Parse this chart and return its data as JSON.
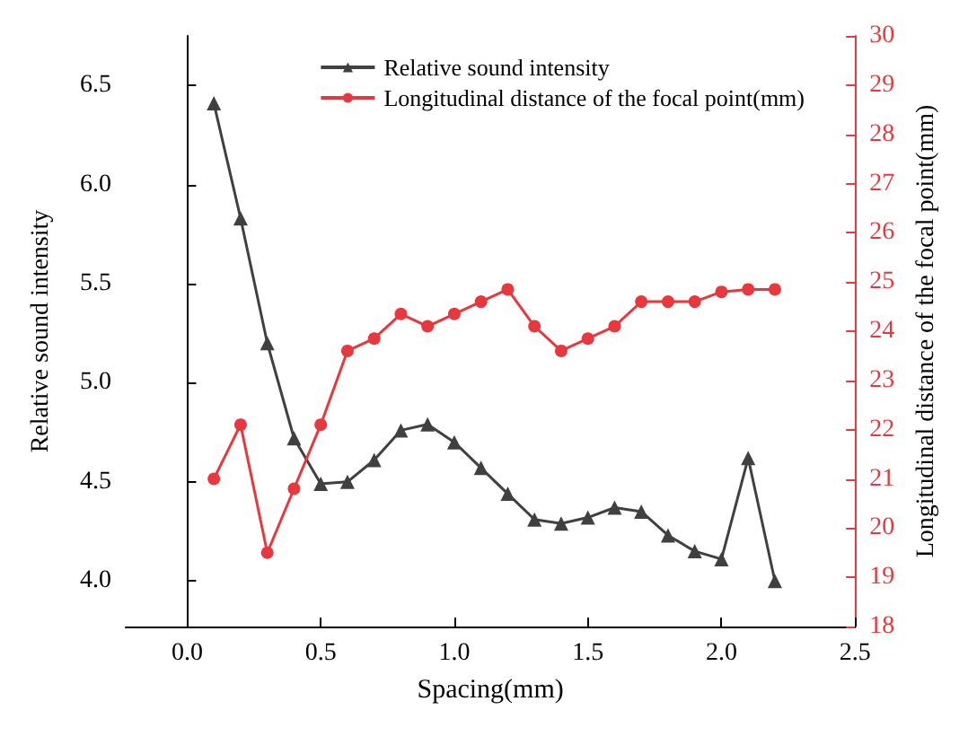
{
  "chart_data": {
    "type": "line",
    "xlabel": "Spacing(mm)",
    "ylabel": "Relative sound intensity",
    "y2label": "Longitudinal distance of the focal point(mm)",
    "x": [
      0.1,
      0.2,
      0.3,
      0.4,
      0.5,
      0.6,
      0.7,
      0.8,
      0.9,
      1.0,
      1.1,
      1.2,
      1.3,
      1.4,
      1.5,
      1.6,
      1.7,
      1.8,
      1.9,
      2.0,
      2.1,
      2.2
    ],
    "series": [
      {
        "name": "Relative sound intensity",
        "color": "#404040",
        "marker": "triangle",
        "values": [
          6.41,
          5.83,
          5.2,
          4.72,
          4.49,
          4.5,
          4.61,
          4.76,
          4.79,
          4.7,
          4.57,
          4.44,
          4.31,
          4.29,
          4.32,
          4.37,
          4.35,
          4.23,
          4.15,
          4.11,
          4.62,
          4.0
        ]
      },
      {
        "name": "Longitudinal distance of the focal point(mm)",
        "color": "#e8383d",
        "marker": "circle",
        "axis": "y2",
        "values": [
          21.0,
          22.1,
          19.5,
          20.8,
          22.1,
          23.6,
          23.85,
          24.35,
          24.1,
          24.35,
          24.6,
          24.85,
          24.1,
          23.6,
          23.85,
          24.1,
          24.6,
          24.6,
          24.6,
          24.8,
          24.85,
          24.85
        ]
      }
    ],
    "xlim": [
      -0.23,
      2.5
    ],
    "xticks": [
      {
        "value": 0,
        "label": "0.0"
      },
      0.5,
      {
        "value": 1,
        "label": "1.0"
      },
      1.5,
      {
        "value": 2,
        "label": "2.0"
      },
      2.5
    ],
    "ylim": [
      3.77,
      6.75
    ],
    "yticks": [
      {
        "value": 4,
        "label": "4.0"
      },
      4.5,
      {
        "value": 5,
        "label": "5.0"
      },
      5.5,
      {
        "value": 6,
        "label": "6.0"
      },
      6.5
    ],
    "y2lim": [
      18,
      30
    ],
    "y2ticks": [
      18,
      19,
      20,
      21,
      22,
      23,
      24,
      25,
      26,
      27,
      28,
      29,
      30
    ],
    "legend": "top right",
    "line_style": "solid"
  }
}
